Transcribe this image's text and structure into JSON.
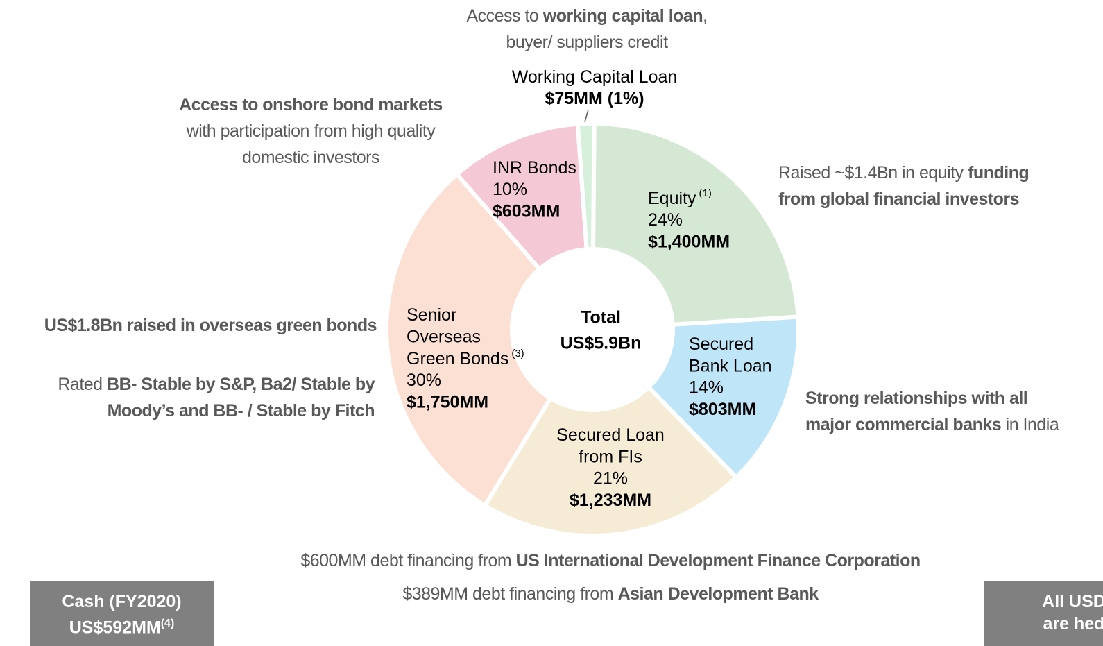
{
  "chart_data": {
    "type": "donut",
    "categories": [
      [
        "Equity"
      ],
      [
        "Secured",
        "Bank Loan"
      ],
      [
        "Secured Loan",
        "from FIs"
      ],
      [
        "Senior",
        "Overseas",
        "Green Bonds"
      ],
      [
        "INR Bonds"
      ],
      [
        "Working Capital Loan"
      ]
    ],
    "category_notes": [
      "(1)",
      null,
      null,
      "(3)",
      null,
      null
    ],
    "values": [
      1400,
      803,
      1233,
      1750,
      603,
      75
    ],
    "value_labels": [
      "$1,400MM",
      "$803MM",
      "$1,233MM",
      "$1,750MM",
      "$603MM",
      "$75MM (1%)"
    ],
    "share_labels": [
      "24%",
      "14%",
      "21%",
      "30%",
      "10%",
      null
    ],
    "colors": [
      "#d5e8d4",
      "#bfe6f8",
      "#f6ecd6",
      "#fde0d4",
      "#f5c8d6",
      "#d6f0dc"
    ],
    "center": [
      "Total",
      "US$5.9Bn"
    ],
    "annotations": [
      {
        "lines": [
          [
            {
              "text": "Access to ",
              "bold": false
            },
            {
              "text": "working capital loan",
              "bold": true
            },
            {
              "text": ",",
              "bold": false
            }
          ],
          [
            {
              "text": "buyer/ suppliers credit",
              "bold": false
            }
          ]
        ]
      },
      {
        "lines": [
          [
            {
              "text": "Access to onshore bond markets",
              "bold": true
            }
          ],
          [
            {
              "text": "with participation from high quality",
              "bold": false
            }
          ],
          [
            {
              "text": "domestic investors",
              "bold": false
            }
          ]
        ]
      },
      {
        "lines": [
          [
            {
              "text": "Raised ~$1.4Bn in equity ",
              "bold": false
            },
            {
              "text": "funding",
              "bold": true
            }
          ],
          [
            {
              "text": "from global financial investors",
              "bold": true
            }
          ]
        ]
      },
      {
        "lines": [
          [
            {
              "text": "US$1.8Bn raised in overseas green bonds",
              "bold": true
            }
          ]
        ]
      },
      {
        "lines": [
          [
            {
              "text": "Rated ",
              "bold": false
            },
            {
              "text": "BB- Stable by S&P, Ba2/ Stable by",
              "bold": true
            }
          ],
          [
            {
              "text": "Moody’s and BB- / Stable by Fitch",
              "bold": true
            }
          ]
        ]
      },
      {
        "lines": [
          [
            {
              "text": "Strong relationships with all",
              "bold": true
            }
          ],
          [
            {
              "text": "major commercial banks",
              "bold": true
            },
            {
              "text": " in India",
              "bold": false
            }
          ]
        ]
      },
      {
        "lines": [
          [
            {
              "text": "$600MM debt financing from ",
              "bold": false
            },
            {
              "text": "US International Development Finance Corporation",
              "bold": true
            }
          ]
        ]
      },
      {
        "lines": [
          [
            {
              "text": "$389MM debt financing from ",
              "bold": false
            },
            {
              "text": "Asian Development Bank",
              "bold": true
            }
          ]
        ]
      }
    ],
    "boxes": [
      {
        "lines": [
          "Cash (FY2020)",
          "US$592MM"
        ],
        "note": "(4)"
      },
      {
        "lines": [
          "All USD",
          "are hed"
        ],
        "note": null
      }
    ]
  }
}
